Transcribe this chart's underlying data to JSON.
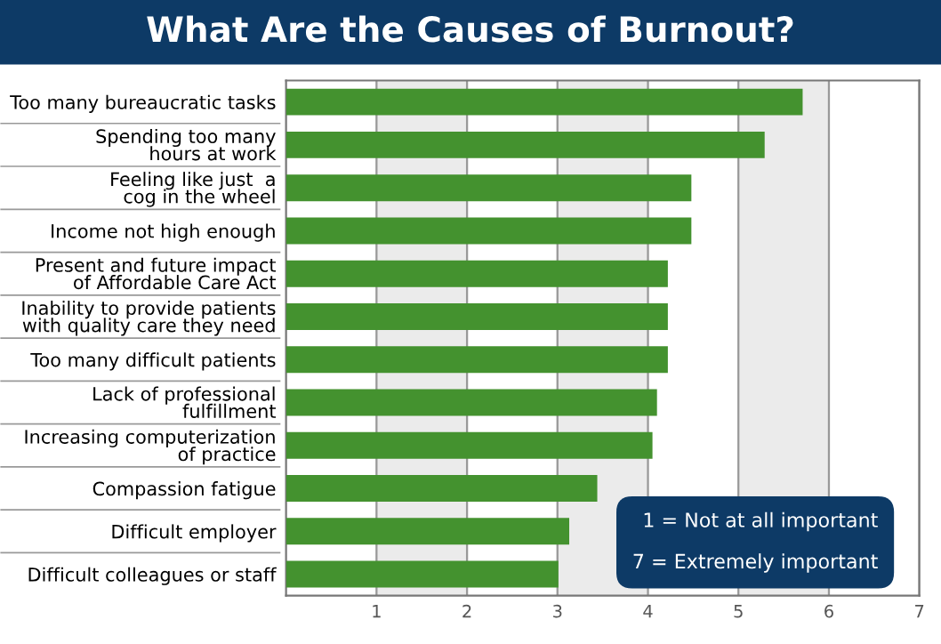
{
  "chart_data": {
    "type": "bar",
    "orientation": "horizontal",
    "title": "What Are the Causes of Burnout?",
    "categories": [
      "Too many bureaucratic tasks",
      "Spending too many\nhours at work",
      "Feeling like just  a\ncog in the wheel",
      "Income not high enough",
      "Present and future impact\nof Affordable Care Act",
      "Inability to provide patients\nwith quality care they need",
      "Too many difficult patients",
      "Lack of professional\nfulfillment",
      "Increasing computerization\nof practice",
      "Compassion fatigue",
      "Difficult employer",
      "Difficult colleagues or staff"
    ],
    "values": [
      5.71,
      5.29,
      4.48,
      4.48,
      4.22,
      4.22,
      4.22,
      4.1,
      4.05,
      3.44,
      3.13,
      3.01
    ],
    "color": "#44922f",
    "xlim": [
      0,
      7
    ],
    "xticks": [
      1,
      2,
      3,
      4,
      5,
      6,
      7
    ],
    "grid": "x",
    "annotations": [
      "1 = Not at all important",
      "7 = Extremely important"
    ]
  }
}
